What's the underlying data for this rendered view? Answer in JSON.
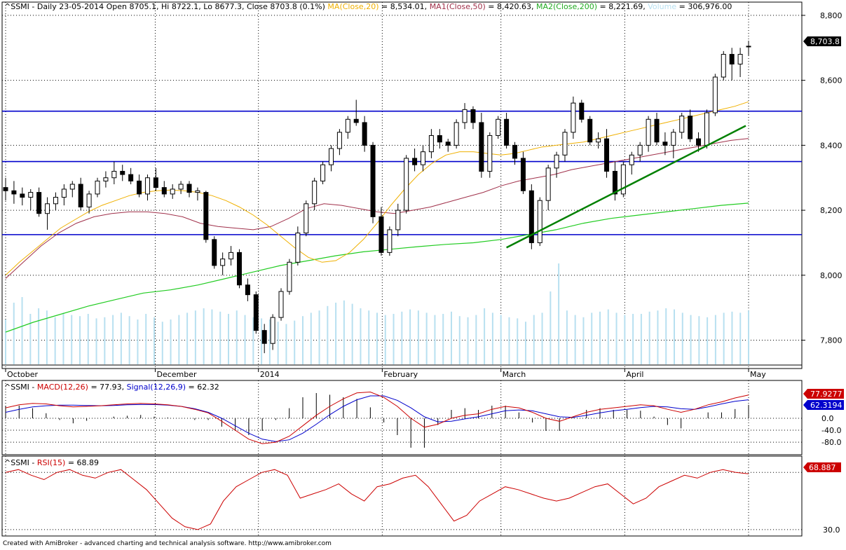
{
  "header": {
    "main_prefix": "^SSMI - Daily 23-05-2014 Open 8705.1, Hi 8722.1, Lo 8677.3, Close 8703.8 (0.1%)",
    "ma20_label": "MA(Close,20)",
    "ma20_value": "= 8,534.01,",
    "ma50_label": "MA1(Close,50)",
    "ma50_value": "= 8,420.63,",
    "ma200_label": "MA2(Close,200)",
    "ma200_value": "= 8,221.69,",
    "volume_label": "Volume",
    "volume_value": "= 306,976.00",
    "macd_prefix": "^SSMI - ",
    "macd_label": "MACD(12,26)",
    "macd_value": "= 77.93,",
    "signal_label": "Signal(12,26,9)",
    "signal_value": "= 62.32",
    "rsi_prefix": "^SSMI - ",
    "rsi_label": "RSI(15)",
    "rsi_value": "= 68.89"
  },
  "badges": {
    "close": "8,703.8",
    "macd": "77.9277",
    "signal": "62.3194",
    "rsi": "68.887"
  },
  "footer": "Created with AmiBroker - advanced charting and technical analysis software. http://www.amibroker.com",
  "colors": {
    "ma20": "#f0b000",
    "ma50": "#a0304a",
    "ma200": "#22cc22",
    "volume": "#b8e0f0",
    "hline": "#0000cc",
    "trend": "#008000",
    "macd": "#cc0000",
    "signal": "#0000cc",
    "rsi": "#cc0000"
  },
  "chart_data": [
    {
      "type": "candlestick",
      "title": "^SSMI - Daily",
      "x_labels": [
        "October",
        "December",
        "2014",
        "February",
        "March",
        "April",
        "May"
      ],
      "y_ticks": [
        "8,800",
        "8,600",
        "8,400",
        "8,200",
        "8,000",
        "7,800"
      ],
      "ylim": [
        7730,
        8830
      ],
      "horizontal_levels": [
        8505,
        8350,
        8125
      ],
      "trendline": [
        [
          8085,
          8460
        ]
      ],
      "candles": [
        [
          8270,
          8300,
          8230,
          8260
        ],
        [
          8260,
          8290,
          8220,
          8250
        ],
        [
          8250,
          8270,
          8215,
          8240
        ],
        [
          8240,
          8265,
          8200,
          8255
        ],
        [
          8255,
          8270,
          8180,
          8190
        ],
        [
          8190,
          8240,
          8140,
          8220
        ],
        [
          8220,
          8255,
          8200,
          8240
        ],
        [
          8240,
          8280,
          8215,
          8265
        ],
        [
          8265,
          8290,
          8240,
          8280
        ],
        [
          8280,
          8300,
          8200,
          8210
        ],
        [
          8210,
          8260,
          8190,
          8250
        ],
        [
          8250,
          8300,
          8240,
          8290
        ],
        [
          8290,
          8320,
          8270,
          8300
        ],
        [
          8300,
          8350,
          8280,
          8320
        ],
        [
          8320,
          8340,
          8290,
          8310
        ],
        [
          8310,
          8330,
          8280,
          8290
        ],
        [
          8290,
          8310,
          8240,
          8250
        ],
        [
          8250,
          8310,
          8230,
          8300
        ],
        [
          8300,
          8330,
          8260,
          8270
        ],
        [
          8270,
          8290,
          8240,
          8250
        ],
        [
          8250,
          8280,
          8235,
          8265
        ],
        [
          8265,
          8290,
          8250,
          8280
        ],
        [
          8280,
          8290,
          8240,
          8255
        ],
        [
          8255,
          8270,
          8230,
          8260
        ],
        [
          8255,
          8260,
          8100,
          8110
        ],
        [
          8110,
          8120,
          8020,
          8030
        ],
        [
          8030,
          8070,
          8000,
          8050
        ],
        [
          8050,
          8090,
          8030,
          8070
        ],
        [
          8070,
          8080,
          7960,
          7970
        ],
        [
          7970,
          7990,
          7920,
          7940
        ],
        [
          7940,
          7950,
          7820,
          7830
        ],
        [
          7830,
          7850,
          7760,
          7790
        ],
        [
          7790,
          7880,
          7770,
          7870
        ],
        [
          7870,
          7960,
          7860,
          7950
        ],
        [
          7950,
          8050,
          7940,
          8040
        ],
        [
          8040,
          8150,
          8030,
          8130
        ],
        [
          8130,
          8230,
          8120,
          8220
        ],
        [
          8220,
          8300,
          8200,
          8290
        ],
        [
          8290,
          8350,
          8280,
          8340
        ],
        [
          8340,
          8400,
          8320,
          8390
        ],
        [
          8390,
          8450,
          8370,
          8440
        ],
        [
          8440,
          8490,
          8420,
          8480
        ],
        [
          8480,
          8540,
          8460,
          8470
        ],
        [
          8470,
          8490,
          8380,
          8400
        ],
        [
          8400,
          8410,
          8160,
          8180
        ],
        [
          8180,
          8210,
          8060,
          8070
        ],
        [
          8070,
          8150,
          8060,
          8140
        ],
        [
          8140,
          8220,
          8120,
          8200
        ],
        [
          8200,
          8370,
          8190,
          8360
        ],
        [
          8360,
          8390,
          8320,
          8340
        ],
        [
          8340,
          8400,
          8320,
          8380
        ],
        [
          8380,
          8450,
          8360,
          8430
        ],
        [
          8430,
          8450,
          8390,
          8410
        ],
        [
          8410,
          8420,
          8380,
          8400
        ],
        [
          8400,
          8480,
          8390,
          8470
        ],
        [
          8470,
          8530,
          8450,
          8510
        ],
        [
          8510,
          8520,
          8450,
          8470
        ],
        [
          8470,
          8500,
          8300,
          8320
        ],
        [
          8320,
          8440,
          8300,
          8430
        ],
        [
          8430,
          8490,
          8420,
          8480
        ],
        [
          8480,
          8500,
          8390,
          8400
        ],
        [
          8400,
          8410,
          8340,
          8360
        ],
        [
          8360,
          8380,
          8250,
          8260
        ],
        [
          8260,
          8280,
          8080,
          8100
        ],
        [
          8100,
          8240,
          8090,
          8230
        ],
        [
          8230,
          8340,
          8200,
          8330
        ],
        [
          8330,
          8380,
          8300,
          8370
        ],
        [
          8370,
          8450,
          8350,
          8440
        ],
        [
          8440,
          8550,
          8420,
          8530
        ],
        [
          8530,
          8540,
          8470,
          8480
        ],
        [
          8480,
          8490,
          8400,
          8410
        ],
        [
          8410,
          8440,
          8390,
          8420
        ],
        [
          8420,
          8450,
          8300,
          8320
        ],
        [
          8320,
          8350,
          8230,
          8250
        ],
        [
          8250,
          8350,
          8240,
          8340
        ],
        [
          8340,
          8380,
          8310,
          8370
        ],
        [
          8370,
          8410,
          8350,
          8400
        ],
        [
          8400,
          8490,
          8380,
          8480
        ],
        [
          8480,
          8500,
          8400,
          8410
        ],
        [
          8410,
          8440,
          8370,
          8400
        ],
        [
          8400,
          8450,
          8360,
          8440
        ],
        [
          8440,
          8500,
          8420,
          8490
        ],
        [
          8490,
          8510,
          8410,
          8420
        ],
        [
          8420,
          8440,
          8380,
          8400
        ],
        [
          8400,
          8510,
          8390,
          8500
        ],
        [
          8500,
          8620,
          8490,
          8610
        ],
        [
          8610,
          8690,
          8600,
          8680
        ],
        [
          8680,
          8700,
          8600,
          8650
        ],
        [
          8650,
          8700,
          8610,
          8680
        ],
        [
          8705,
          8722,
          8677,
          8704
        ]
      ],
      "ma20": [
        8000,
        8040,
        8075,
        8110,
        8145,
        8170,
        8195,
        8215,
        8230,
        8245,
        8255,
        8260,
        8262,
        8260,
        8255,
        8245,
        8230,
        8210,
        8185,
        8155,
        8120,
        8085,
        8055,
        8040,
        8045,
        8070,
        8110,
        8160,
        8215,
        8265,
        8310,
        8345,
        8370,
        8380,
        8380,
        8375,
        8370,
        8375,
        8385,
        8395,
        8400,
        8405,
        8410,
        8420,
        8430,
        8440,
        8450,
        8460,
        8470,
        8480,
        8490,
        8500,
        8510,
        8520,
        8534
      ],
      "ma50": [
        7990,
        8040,
        8090,
        8130,
        8160,
        8180,
        8190,
        8195,
        8195,
        8190,
        8180,
        8160,
        8150,
        8145,
        8140,
        8150,
        8175,
        8205,
        8220,
        8215,
        8205,
        8195,
        8190,
        8200,
        8210,
        8225,
        8240,
        8255,
        8275,
        8290,
        8300,
        8310,
        8325,
        8335,
        8345,
        8355,
        8365,
        8375,
        8385,
        8395,
        8405,
        8415,
        8421
      ],
      "ma200": [
        7825,
        7855,
        7880,
        7905,
        7925,
        7945,
        7955,
        7970,
        7990,
        8010,
        8030,
        8045,
        8060,
        8072,
        8080,
        8088,
        8095,
        8100,
        8110,
        8125,
        8140,
        8160,
        8175,
        8185,
        8195,
        8205,
        8215,
        8222
      ],
      "volume": [
        40,
        55,
        60,
        45,
        50,
        48,
        42,
        46,
        44,
        43,
        45,
        41,
        42,
        44,
        46,
        43,
        40,
        45,
        42,
        38,
        40,
        44,
        46,
        48,
        50,
        49,
        47,
        45,
        48,
        44,
        42,
        41,
        40,
        38,
        36,
        39,
        43,
        46,
        48,
        52,
        55,
        57,
        54,
        50,
        48,
        46,
        44,
        45,
        47,
        49,
        48,
        46,
        44,
        45,
        47,
        43,
        42,
        44,
        50,
        46,
        44,
        42,
        41,
        38,
        44,
        46,
        65,
        90,
        48,
        44,
        42,
        46,
        47,
        49,
        46,
        44,
        45,
        45,
        47,
        48,
        50,
        49,
        46,
        44,
        43,
        42,
        44,
        46,
        47,
        46,
        48
      ]
    },
    {
      "type": "line",
      "title": "MACD(12,26)",
      "y_ticks": [
        "0.0",
        "-40.0",
        "-80.0"
      ],
      "ylim": [
        -115,
        115
      ],
      "macd": [
        35,
        45,
        50,
        48,
        42,
        38,
        40,
        42,
        45,
        48,
        50,
        48,
        45,
        40,
        30,
        18,
        -10,
        -40,
        -70,
        -85,
        -80,
        -60,
        -25,
        10,
        40,
        65,
        85,
        88,
        70,
        40,
        0,
        -30,
        -20,
        0,
        10,
        15,
        30,
        40,
        35,
        20,
        0,
        -10,
        5,
        20,
        30,
        35,
        40,
        45,
        42,
        30,
        20,
        30,
        45,
        55,
        68,
        78
      ],
      "signal": [
        20,
        30,
        38,
        42,
        44,
        44,
        43,
        42,
        43,
        45,
        46,
        46,
        44,
        40,
        32,
        20,
        0,
        -25,
        -50,
        -70,
        -78,
        -72,
        -50,
        -20,
        12,
        40,
        62,
        75,
        75,
        60,
        35,
        5,
        -12,
        -10,
        -2,
        5,
        15,
        25,
        28,
        25,
        15,
        5,
        3,
        10,
        18,
        25,
        30,
        36,
        40,
        38,
        32,
        30,
        38,
        48,
        57,
        62
      ]
    },
    {
      "type": "line",
      "title": "RSI(15)",
      "y_ticks": [
        "30.0"
      ],
      "ylim": [
        28,
        76
      ],
      "rsi": [
        70,
        72,
        68,
        65,
        70,
        72,
        68,
        66,
        70,
        72,
        65,
        58,
        48,
        38,
        32,
        30,
        34,
        50,
        60,
        65,
        70,
        72,
        68,
        52,
        55,
        58,
        62,
        55,
        50,
        60,
        62,
        66,
        68,
        60,
        48,
        36,
        40,
        50,
        55,
        60,
        58,
        55,
        52,
        50,
        52,
        56,
        60,
        62,
        55,
        48,
        52,
        60,
        64,
        68,
        66,
        70,
        72,
        70,
        69
      ]
    }
  ]
}
